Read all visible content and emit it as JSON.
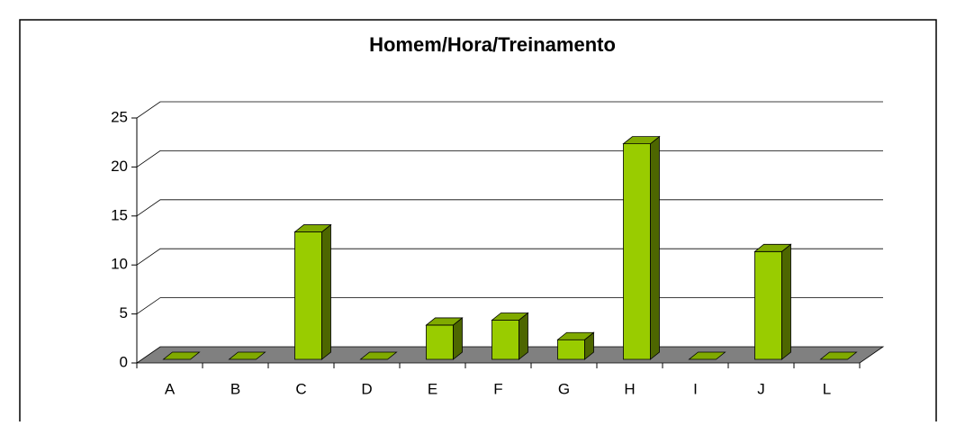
{
  "chart_data": {
    "type": "bar",
    "title": "Homem/Hora/Treinamento",
    "categories": [
      "A",
      "B",
      "C",
      "D",
      "E",
      "F",
      "G",
      "H",
      "I",
      "J",
      "L"
    ],
    "values": [
      0,
      0,
      13,
      0,
      3.5,
      4,
      2,
      22,
      0,
      11,
      0
    ],
    "color": "#99cc00",
    "ylim": [
      0,
      25
    ],
    "yticks": [
      0,
      5,
      10,
      15,
      20,
      25
    ],
    "grid": true
  }
}
